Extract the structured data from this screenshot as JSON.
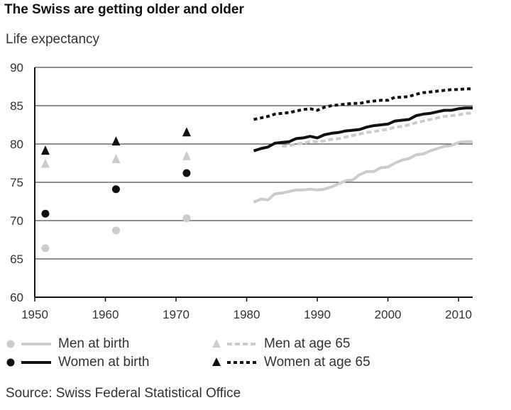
{
  "chart_data": {
    "type": "line",
    "title": "The Swiss are getting older and older",
    "ylabel": "Life expectancy",
    "xlabel": "",
    "xlim": [
      1950,
      2012
    ],
    "ylim": [
      60,
      90
    ],
    "xticks": [
      1950,
      1960,
      1970,
      1980,
      1990,
      2000,
      2010
    ],
    "yticks": [
      60,
      65,
      70,
      75,
      80,
      85,
      90
    ],
    "grid": "horizontal",
    "legend_position": "bottom",
    "points": [
      {
        "name": "Men at birth",
        "color": "#cccccc",
        "marker": "circle",
        "x": [
          1951.5,
          1961.5,
          1971.5
        ],
        "y": [
          66.4,
          68.7,
          70.3
        ]
      },
      {
        "name": "Women at birth",
        "color": "#111111",
        "marker": "circle",
        "x": [
          1951.5,
          1961.5,
          1971.5
        ],
        "y": [
          70.9,
          74.1,
          76.2
        ]
      },
      {
        "name": "Men at age 65",
        "color": "#cccccc",
        "marker": "triangle",
        "x": [
          1951.5,
          1961.5,
          1971.5
        ],
        "y": [
          77.5,
          78.1,
          78.5
        ]
      },
      {
        "name": "Women at age 65",
        "color": "#111111",
        "marker": "triangle",
        "x": [
          1951.5,
          1961.5,
          1971.5
        ],
        "y": [
          79.2,
          80.4,
          81.6
        ]
      }
    ],
    "series": [
      {
        "name": "Men at birth",
        "color": "#cccccc",
        "style": "solid",
        "x": [
          1981,
          1982,
          1983,
          1984,
          1985,
          1986,
          1987,
          1988,
          1989,
          1990,
          1991,
          1992,
          1993,
          1994,
          1995,
          1996,
          1997,
          1998,
          1999,
          2000,
          2001,
          2002,
          2003,
          2004,
          2005,
          2006,
          2007,
          2008,
          2009,
          2010,
          2011,
          2012
        ],
        "y": [
          72.4,
          72.8,
          72.7,
          73.5,
          73.6,
          73.8,
          74.0,
          74.0,
          74.1,
          74.0,
          74.1,
          74.4,
          74.8,
          75.2,
          75.3,
          76.0,
          76.4,
          76.4,
          76.9,
          77.0,
          77.5,
          77.9,
          78.1,
          78.6,
          78.7,
          79.1,
          79.4,
          79.7,
          79.8,
          80.2,
          80.3,
          80.3
        ]
      },
      {
        "name": "Women at birth",
        "color": "#111111",
        "style": "solid",
        "x": [
          1981,
          1982,
          1983,
          1984,
          1985,
          1986,
          1987,
          1988,
          1989,
          1990,
          1991,
          1992,
          1993,
          1994,
          1995,
          1996,
          1997,
          1998,
          1999,
          2000,
          2001,
          2002,
          2003,
          2004,
          2005,
          2006,
          2007,
          2008,
          2009,
          2010,
          2011,
          2012
        ],
        "y": [
          79.1,
          79.4,
          79.6,
          80.1,
          80.2,
          80.3,
          80.7,
          80.8,
          81.0,
          80.8,
          81.2,
          81.4,
          81.5,
          81.7,
          81.8,
          81.9,
          82.2,
          82.4,
          82.5,
          82.6,
          83.0,
          83.1,
          83.2,
          83.7,
          83.9,
          84.0,
          84.2,
          84.4,
          84.4,
          84.6,
          84.7,
          84.7
        ]
      },
      {
        "name": "Men at age 65",
        "color": "#cccccc",
        "style": "dashed",
        "x": [
          1985,
          1986,
          1987,
          1988,
          1989,
          1990,
          1991,
          1992,
          1993,
          1994,
          1995,
          1996,
          1997,
          1998,
          1999,
          2000,
          2001,
          2002,
          2003,
          2004,
          2005,
          2006,
          2007,
          2008,
          2009,
          2010,
          2011,
          2012
        ],
        "y": [
          79.7,
          79.8,
          80.0,
          80.1,
          80.3,
          80.3,
          80.4,
          80.6,
          80.7,
          80.9,
          81.1,
          81.3,
          81.5,
          81.6,
          81.8,
          81.9,
          82.2,
          82.3,
          82.5,
          82.8,
          83.0,
          83.2,
          83.4,
          83.6,
          83.7,
          83.8,
          84.0,
          84.0
        ]
      },
      {
        "name": "Women at age 65",
        "color": "#111111",
        "style": "dotted",
        "x": [
          1981,
          1982,
          1983,
          1984,
          1985,
          1986,
          1987,
          1988,
          1989,
          1990,
          1991,
          1992,
          1993,
          1994,
          1995,
          1996,
          1997,
          1998,
          1999,
          2000,
          2001,
          2002,
          2003,
          2004,
          2005,
          2006,
          2007,
          2008,
          2009,
          2010,
          2011,
          2012
        ],
        "y": [
          83.2,
          83.4,
          83.6,
          83.9,
          84.0,
          84.1,
          84.3,
          84.5,
          84.6,
          84.4,
          84.8,
          85.0,
          85.1,
          85.2,
          85.3,
          85.3,
          85.5,
          85.6,
          85.7,
          85.7,
          86.1,
          86.1,
          86.2,
          86.5,
          86.7,
          86.8,
          86.9,
          87.0,
          87.1,
          87.1,
          87.2,
          87.2
        ]
      }
    ],
    "source": "Source: Swiss Federal Statistical Office"
  }
}
